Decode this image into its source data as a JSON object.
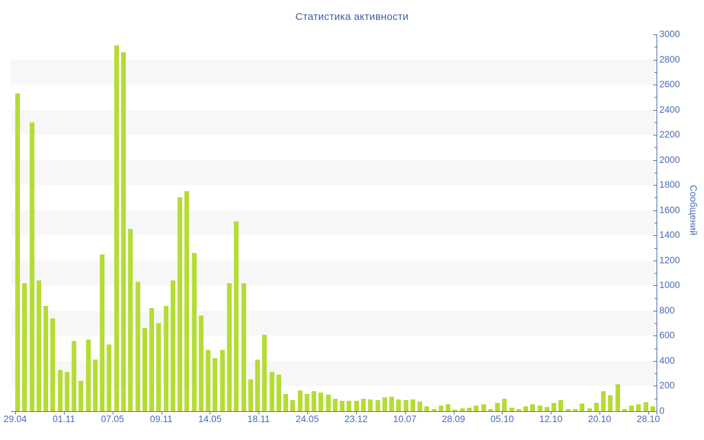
{
  "page": {
    "background": "#ffffff"
  },
  "chart_data": {
    "type": "bar",
    "title": "Статистика активности",
    "xlabel": "",
    "ylabel": "Сообщений",
    "ylim": [
      0,
      3000
    ],
    "y_tick_step": 200,
    "y_minor_tick_step": 100,
    "y_tick_labels": [
      "0",
      "200",
      "400",
      "600",
      "800",
      "1000",
      "1200",
      "1400",
      "1600",
      "1800",
      "2000",
      "2200",
      "2400",
      "2600",
      "2800",
      "3000"
    ],
    "x_tick_labels": [
      "29.04",
      "01.11",
      "07.05",
      "09.11",
      "14.05",
      "18.11",
      "24.05",
      "23.12",
      "10.07",
      "28.09",
      "05.10",
      "12.10",
      "20.10",
      "28.10"
    ],
    "values": [
      2530,
      1020,
      2300,
      1040,
      840,
      740,
      330,
      310,
      560,
      240,
      570,
      410,
      1250,
      530,
      2910,
      2860,
      1450,
      1030,
      660,
      820,
      700,
      840,
      1040,
      1700,
      1750,
      1260,
      760,
      490,
      420,
      490,
      1020,
      1510,
      1020,
      250,
      410,
      610,
      310,
      290,
      135,
      85,
      165,
      135,
      160,
      150,
      130,
      100,
      80,
      80,
      80,
      100,
      95,
      90,
      110,
      115,
      95,
      90,
      95,
      75,
      40,
      15,
      45,
      55,
      10,
      20,
      30,
      45,
      55,
      15,
      65,
      100,
      30,
      15,
      40,
      55,
      45,
      35,
      65,
      90,
      15,
      15,
      60,
      20,
      65,
      160,
      125,
      215,
      15,
      45,
      55,
      70,
      40
    ],
    "legend": "none",
    "grid": "alternating horizontal shaded bands every 200 units (200-400, 600-800, ... 2600-2800)",
    "bar_color": "#b5dc35",
    "bar_edge_color": "#c6e45c",
    "band_color": "#f7f7f7",
    "axis_color": "#4d6cb3",
    "label_color": "#4a69b5",
    "title_color": "#3d5fa8"
  }
}
